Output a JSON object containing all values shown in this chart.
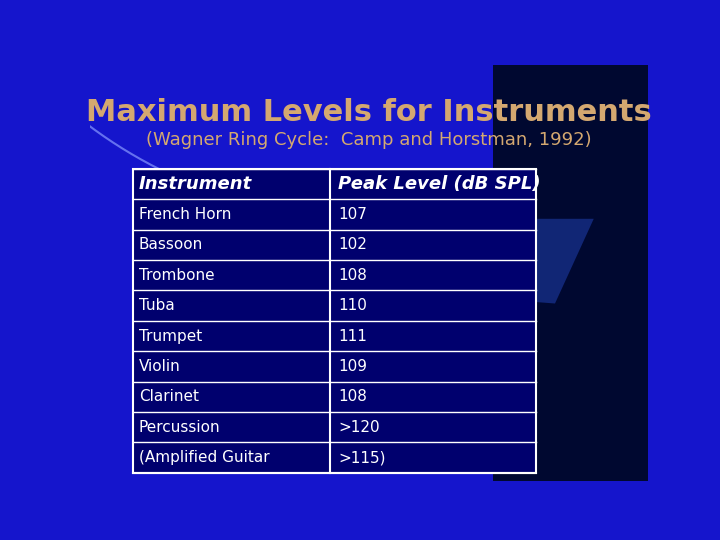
{
  "title": "Maximum Levels for Instruments",
  "subtitle": "(Wagner Ring Cycle:  Camp and Horstman, 1992)",
  "title_color": "#D4A870",
  "subtitle_color": "#D4A870",
  "bg_blue": "#1515CC",
  "bg_dark_navy": "#000830",
  "swoosh_blue": "#3355EE",
  "swoosh_light": "#4466FF",
  "arc_color": "#6688FF",
  "table_header": [
    "Instrument",
    "Peak Level (dB SPL)"
  ],
  "table_rows": [
    [
      "French Horn",
      "107"
    ],
    [
      "Bassoon",
      "102"
    ],
    [
      "Trombone",
      "108"
    ],
    [
      "Tuba",
      "110"
    ],
    [
      "Trumpet",
      "111"
    ],
    [
      "Violin",
      "109"
    ],
    [
      "Clarinet",
      "108"
    ],
    [
      "Percussion",
      ">120"
    ],
    [
      "(Amplified Guitar",
      ">115)"
    ]
  ],
  "table_bg": "#00006E",
  "table_border_color": "#FFFFFF",
  "table_text_color": "#FFFFFF",
  "header_text_color": "#FFFFFF",
  "figsize": [
    7.2,
    5.4
  ],
  "dpi": 100
}
